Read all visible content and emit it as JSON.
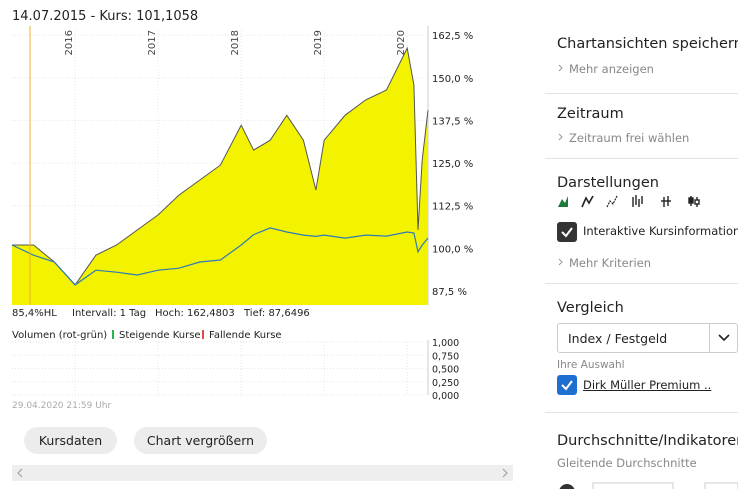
{
  "chart_data": [
    {
      "type": "line",
      "title": "14.07.2015  -  Kurs: 101,1058",
      "annotations": [
        "85,4%HL",
        "Intervall: 1 Tag",
        "Hoch: 162,4803",
        "Tief: 87,6496"
      ],
      "x": [
        2015.24,
        2015.5,
        2015.75,
        2016,
        2016.25,
        2016.5,
        2016.75,
        2017,
        2017.25,
        2017.5,
        2017.75,
        2018,
        2018.15,
        2018.35,
        2018.55,
        2018.75,
        2018.9,
        2019,
        2019.25,
        2019.5,
        2019.75,
        2020,
        2020.08,
        2020.13,
        2020.18,
        2020.25
      ],
      "series": [
        {
          "type": "area",
          "color": "#f3f300",
          "values": [
            101,
            101,
            96,
            89.3,
            98,
            101,
            105.4,
            109.8,
            115.6,
            120,
            124.4,
            136.1,
            128.8,
            131.7,
            139,
            131.7,
            117.1,
            131.7,
            139,
            143.5,
            146.4,
            158.7,
            147.9,
            105.4,
            125.9,
            140.5
          ]
        },
        {
          "type": "line",
          "color": "#2f7ab8",
          "values": [
            101,
            98,
            96,
            89.3,
            93.6,
            93,
            92.2,
            93.6,
            94.2,
            96,
            96.6,
            101,
            104,
            106,
            104.8,
            103.9,
            103.5,
            103.9,
            103,
            103.9,
            103.6,
            104.8,
            104.5,
            99,
            101,
            103
          ]
        }
      ],
      "xlim": [
        2015.24,
        2020.25
      ],
      "xticks": [
        2016,
        2017,
        2018,
        2019,
        2020
      ],
      "ylim": [
        83.4,
        164
      ],
      "yticks": [
        {
          "value": 87.5,
          "label": "87,5 %"
        },
        {
          "value": 100,
          "label": "100,0 %"
        },
        {
          "value": 112.5,
          "label": "112,5 %"
        },
        {
          "value": 125,
          "label": "125,0 %"
        },
        {
          "value": 137.5,
          "label": "137,5 %"
        },
        {
          "value": 150,
          "label": "150,0 %"
        },
        {
          "value": 162.5,
          "label": "162,5 %"
        }
      ],
      "grid": true
    },
    {
      "type": "bar",
      "title": "Volumen (rot-grün)",
      "series": [
        {
          "name": "Steigende Kurse",
          "color": "#2db34a",
          "values": []
        },
        {
          "name": "Fallende Kurse",
          "color": "#e8464f",
          "values": []
        }
      ],
      "ylim": [
        0,
        1
      ],
      "yticks": [
        {
          "value": 0,
          "label": "0,000"
        },
        {
          "value": 0.25,
          "label": "0,250"
        },
        {
          "value": 0.5,
          "label": "0,500"
        },
        {
          "value": 0.75,
          "label": "0,750"
        },
        {
          "value": 1,
          "label": "1,000"
        }
      ],
      "grid": true
    }
  ],
  "ui": {
    "timestamp": "29.04.2020 21:59 Uhr",
    "buttons": [
      "Kursdaten",
      "Chart vergrößern"
    ],
    "panel": {
      "views": {
        "title": "Chartansichten speichern",
        "link": "Mehr anzeigen"
      },
      "range": {
        "title": "Zeitraum",
        "link": "Zeitraum frei wählen"
      },
      "styles": {
        "title": "Darstellungen",
        "checkbox": "Interaktive Kursinformatione",
        "link": "Mehr Kriterien"
      },
      "compare": {
        "title": "Vergleich",
        "select": "Index / Festgeld",
        "label": "Ihre Auswahl",
        "checkbox": "Dirk Müller Premium .."
      },
      "indicators": {
        "title": "Durchschnitte/Indikatoren",
        "label": "Gleitende Durchschnitte"
      }
    }
  }
}
